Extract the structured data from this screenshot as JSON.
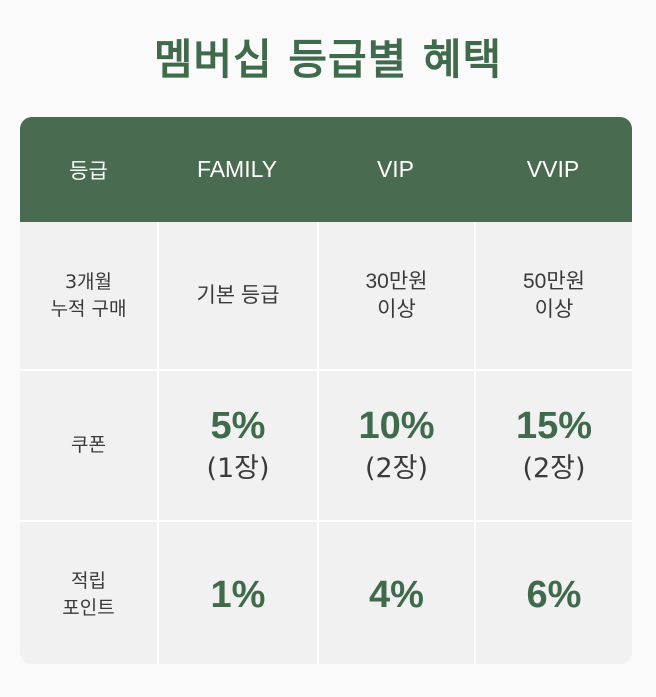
{
  "title": "멤버십 등급별 혜택",
  "colors": {
    "header_bg": "#496b50",
    "accent_green": "#3f6a4c",
    "cell_bg": "#f1f1f1"
  },
  "table": {
    "header": {
      "grade_label": "등급",
      "family": "FAMILY",
      "vip": "VIP",
      "vvip": "VVIP"
    },
    "purchase": {
      "label_line1": "3개월",
      "label_line2": "누적 구매",
      "family": "기본 등급",
      "vip_line1": "30만원",
      "vip_line2": "이상",
      "vvip_line1": "50만원",
      "vvip_line2": "이상"
    },
    "coupon": {
      "label": "쿠폰",
      "family_pct": "5%",
      "family_count": "(1장)",
      "vip_pct": "10%",
      "vip_count": "(2장)",
      "vvip_pct": "15%",
      "vvip_count": "(2장)"
    },
    "points": {
      "label_line1": "적립",
      "label_line2": "포인트",
      "family": "1%",
      "vip": "4%",
      "vvip": "6%"
    }
  }
}
